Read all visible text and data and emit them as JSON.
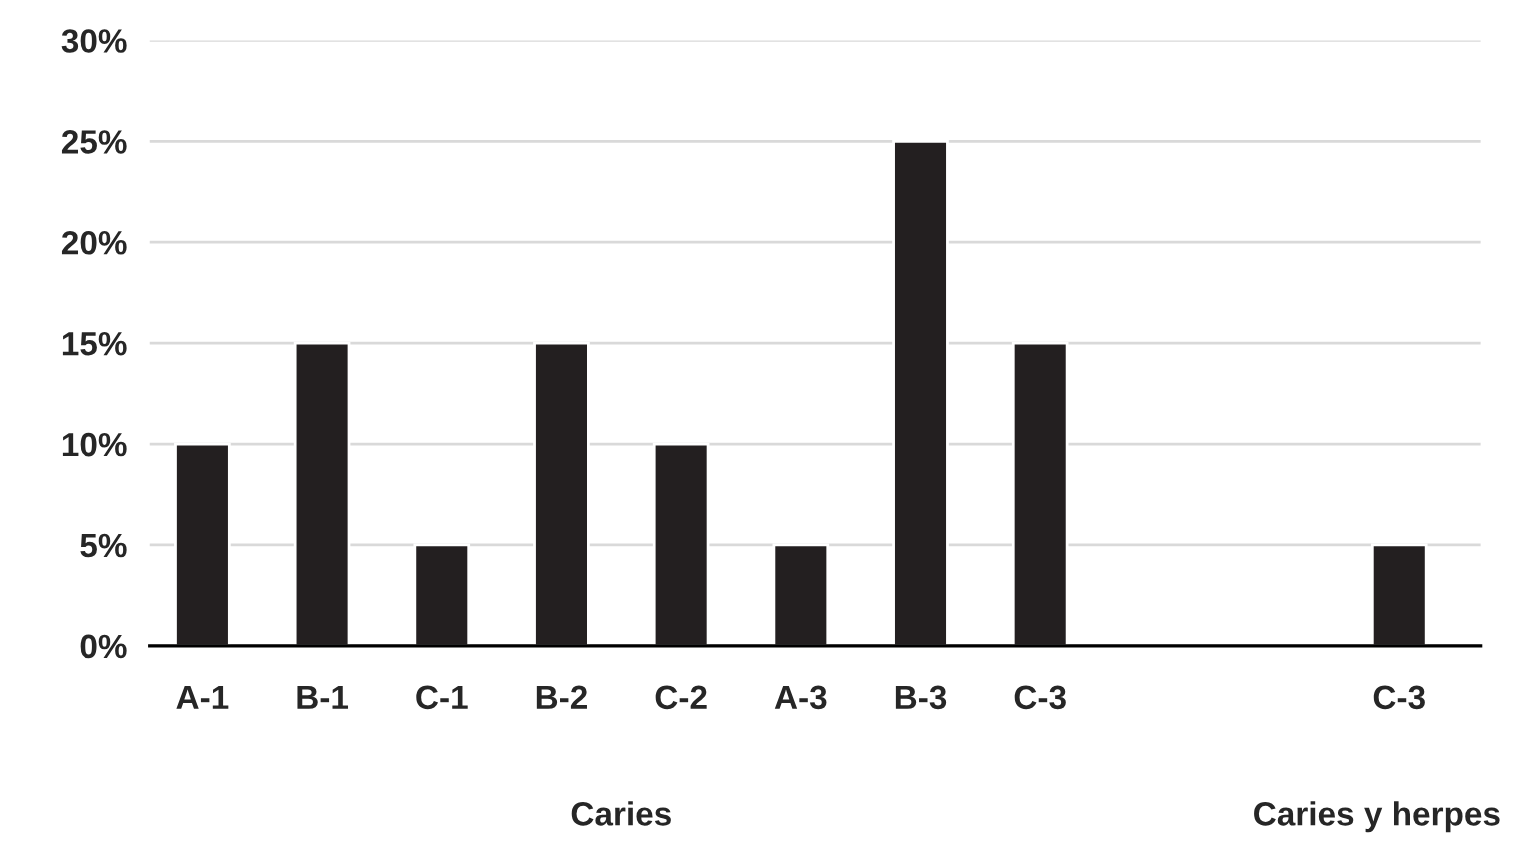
{
  "chart_data": {
    "type": "bar",
    "categories": [
      "A-1",
      "B-1",
      "C-1",
      "B-2",
      "C-2",
      "A-3",
      "B-3",
      "C-3",
      null,
      null,
      "C-3"
    ],
    "values": [
      10,
      15,
      5,
      15,
      10,
      5,
      25,
      15,
      null,
      null,
      5
    ],
    "color": "#231f20",
    "ylim": [
      0,
      30
    ],
    "yticks": [
      {
        "value": 0,
        "label": "0%"
      },
      {
        "value": 5,
        "label": "5%"
      },
      {
        "value": 10,
        "label": "10%"
      },
      {
        "value": 15,
        "label": "15%"
      },
      {
        "value": 20,
        "label": "20%"
      },
      {
        "value": 25,
        "label": "25%"
      },
      {
        "value": 30,
        "label": "30%"
      }
    ],
    "grid": "y",
    "annotations": [
      "Caries",
      "Caries y herpes"
    ]
  }
}
